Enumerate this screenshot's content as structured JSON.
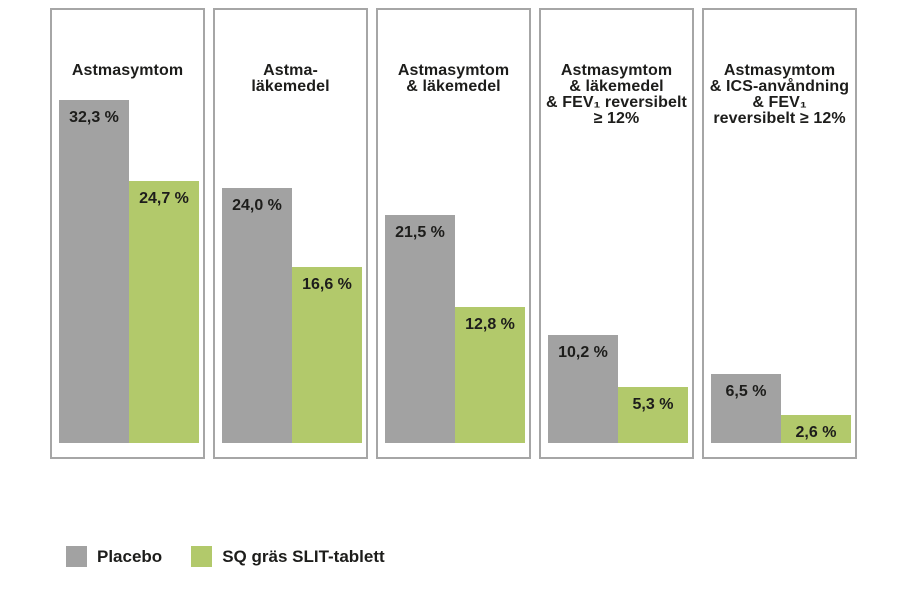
{
  "colors": {
    "placebo": "#a2a2a2",
    "slit": "#b2c96b",
    "panel_border": "#a6a6a6",
    "text": "#1d1d1b"
  },
  "panels": [
    {
      "title_lines": [
        "Astmasymtom"
      ],
      "bars": {
        "placebo": {
          "label": "32,3 %",
          "value": 32.3
        },
        "slit": {
          "label": "24,7 %",
          "value": 24.7
        }
      }
    },
    {
      "title_lines": [
        "Astma-",
        "läkemedel"
      ],
      "bars": {
        "placebo": {
          "label": "24,0 %",
          "value": 24.0
        },
        "slit": {
          "label": "16,6 %",
          "value": 16.6
        }
      }
    },
    {
      "title_lines": [
        "Astmasymtom",
        "& läkemedel"
      ],
      "bars": {
        "placebo": {
          "label": "21,5 %",
          "value": 21.5
        },
        "slit": {
          "label": "12,8 %",
          "value": 12.8
        }
      }
    },
    {
      "title_lines": [
        "Astmasymtom",
        "& läkemedel",
        "& FEV₁ reversibelt",
        "≥ 12%"
      ],
      "bars": {
        "placebo": {
          "label": "10,2 %",
          "value": 10.2
        },
        "slit": {
          "label": "5,3 %",
          "value": 5.3
        }
      }
    },
    {
      "title_lines": [
        "Astmasymtom",
        "& ICS-anvåndning",
        "& FEV₁",
        "reversibelt ≥ 12%"
      ],
      "bars": {
        "placebo": {
          "label": "6,5 %",
          "value": 6.5
        },
        "slit": {
          "label": "2,6 %",
          "value": 2.6
        }
      }
    }
  ],
  "legend": {
    "items": [
      {
        "label": "Placebo",
        "color_key": "placebo"
      },
      {
        "label": "SQ gräs SLIT-tablett",
        "color_key": "slit"
      }
    ]
  },
  "chart_data": {
    "type": "bar",
    "title": "",
    "categories": [
      "Astmasymtom",
      "Astma-läkemedel",
      "Astmasymtom & läkemedel",
      "Astmasymtom & läkemedel & FEV₁ reversibelt ≥ 12%",
      "Astmasymtom & ICS-anvåndning & FEV₁ reversibelt ≥ 12%"
    ],
    "series": [
      {
        "name": "Placebo",
        "values": [
          32.3,
          24.0,
          21.5,
          10.2,
          6.5
        ]
      },
      {
        "name": "SQ gräs SLIT-tablett",
        "values": [
          24.7,
          16.6,
          12.8,
          5.3,
          2.6
        ]
      }
    ],
    "value_labels": [
      [
        "32,3 %",
        "24,0 %",
        "21,5 %",
        "10,2 %",
        "6,5 %"
      ],
      [
        "24,7 %",
        "16,6 %",
        "12,8 %",
        "5,3 %",
        "2,6 %"
      ]
    ],
    "unit": "%",
    "ylim": [
      0,
      35
    ],
    "grid": false,
    "legend_position": "bottom-left"
  }
}
